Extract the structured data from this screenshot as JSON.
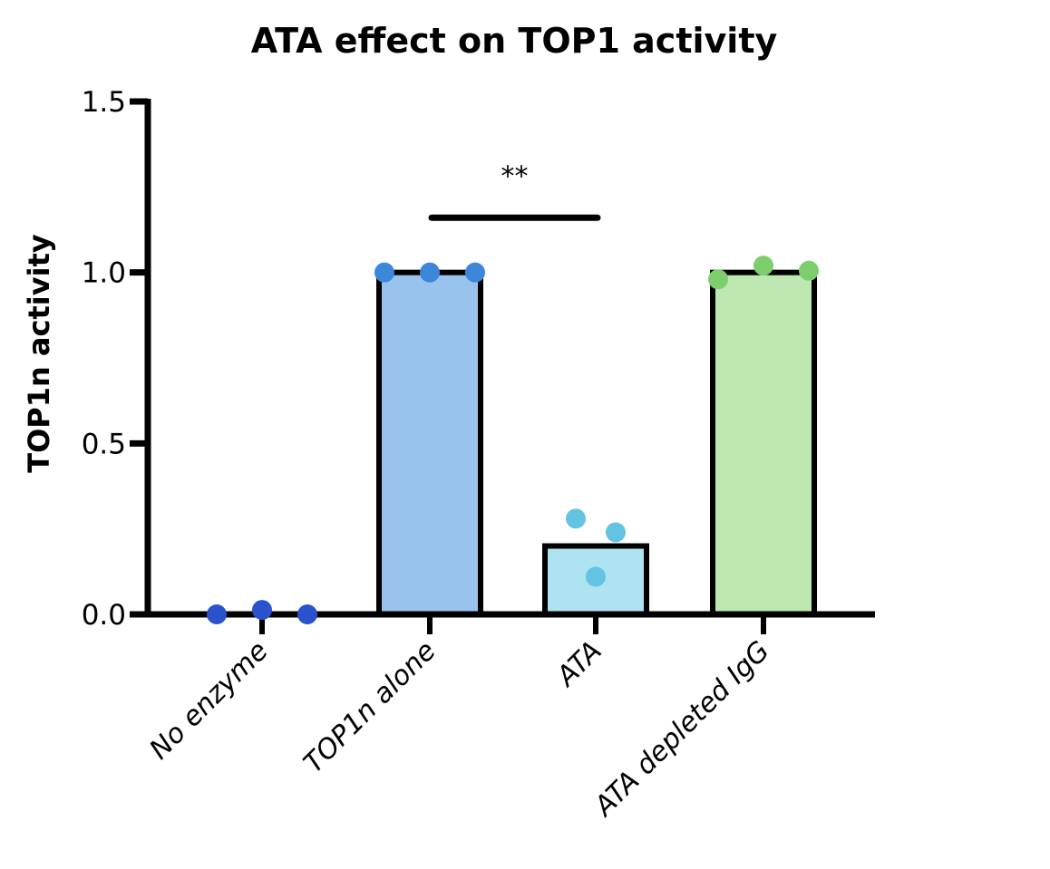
{
  "chart_data": {
    "type": "bar",
    "title": "ATA effect on TOP1 activity",
    "xlabel": "",
    "ylabel": "TOP1n activity",
    "ylim": [
      0,
      1.5
    ],
    "yticks": [
      0.0,
      0.5,
      1.0,
      1.5
    ],
    "ytick_labels": [
      "0.0",
      "0.5",
      "1.0",
      "1.5"
    ],
    "grid": false,
    "legend": "none",
    "categories": [
      "No enzyme",
      "TOP1n alone",
      "ATA",
      "ATA depleted IgG"
    ],
    "values": [
      0.0,
      1.0,
      0.2,
      1.0
    ],
    "bar_colors": [
      "#ffffff",
      "#98c3ec",
      "#aee3f1",
      "#bde8b2"
    ],
    "point_colors": [
      "#2a52cc",
      "#3d87db",
      "#62c3e3",
      "#7ccf6c"
    ],
    "points": [
      [
        0.0,
        0.013,
        0.0
      ],
      [
        1.0,
        1.0,
        1.0
      ],
      [
        0.28,
        0.24,
        0.11
      ],
      [
        0.98,
        1.02,
        1.005
      ]
    ],
    "annotations": [
      {
        "text": "**",
        "from": "TOP1n alone",
        "to": "ATA",
        "y": 1.16
      }
    ]
  }
}
